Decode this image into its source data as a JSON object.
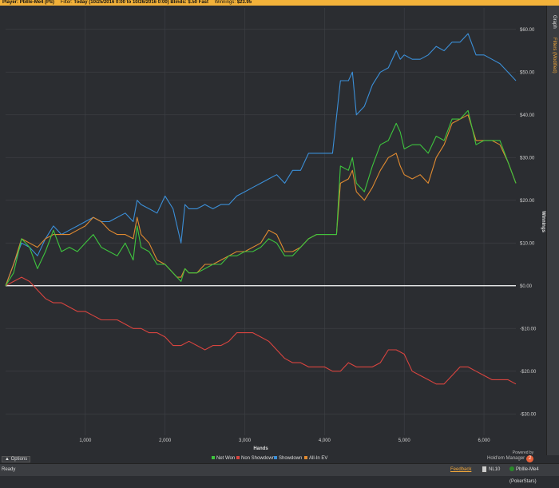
{
  "window": {
    "player_label": "Player:",
    "player_value": "PbIlle-Me4 (PS)",
    "filter_label": "Filter:",
    "filter_value": "Today (10/25/2016 0:00 to 10/26/2016 0:00) Blinds: $.50 Fast",
    "winnings_label": "Winnings:",
    "winnings_value": "$23.95"
  },
  "side_tabs": {
    "graph": "Graph",
    "filters": "Filters (Modified)"
  },
  "footer": {
    "options_label": "Options",
    "status": "Ready",
    "feedback": "Feedback",
    "limit": "NL10",
    "player": "PbIlle-Me4 (PokerStars)",
    "brand_small": "Powered by",
    "brand": "Hold'em Manager",
    "brand_badge": "2"
  },
  "colors": {
    "net_won": "#3ec43e",
    "non_showdown": "#d9443f",
    "showdown": "#3b8fd8",
    "allin_ev": "#e08a30",
    "zero_line": "#ffffff",
    "background": "#2b2d31",
    "grid": "#3c3f44"
  },
  "chart_data": {
    "type": "line",
    "title": "",
    "xlabel": "Hands",
    "ylabel": "Winnings",
    "xlim": [
      0,
      6400
    ],
    "ylim": [
      -35,
      65
    ],
    "x_ticks": [
      1000,
      2000,
      3000,
      4000,
      5000,
      6000
    ],
    "x_tick_labels": [
      "1,000",
      "2,000",
      "3,000",
      "4,000",
      "5,000",
      "6,000"
    ],
    "y_ticks": [
      -30,
      -20,
      -10,
      0,
      10,
      20,
      30,
      40,
      50,
      60
    ],
    "y_tick_labels": [
      "-$30.00",
      "-$20.00",
      "-$10.00",
      "$0.00",
      "$10.00",
      "$20.00",
      "$30.00",
      "$40.00",
      "$50.00",
      "$60.00"
    ],
    "grid": true,
    "legend_position": "bottom",
    "series": [
      {
        "name": "Net Won",
        "color": "#3ec43e",
        "points": [
          [
            0,
            0
          ],
          [
            100,
            3
          ],
          [
            200,
            11
          ],
          [
            300,
            9
          ],
          [
            400,
            4
          ],
          [
            500,
            8
          ],
          [
            600,
            13
          ],
          [
            700,
            8
          ],
          [
            800,
            9
          ],
          [
            900,
            8
          ],
          [
            1000,
            10
          ],
          [
            1100,
            12
          ],
          [
            1200,
            9
          ],
          [
            1300,
            8
          ],
          [
            1400,
            7
          ],
          [
            1500,
            10
          ],
          [
            1600,
            6
          ],
          [
            1650,
            14
          ],
          [
            1700,
            9
          ],
          [
            1800,
            8
          ],
          [
            1900,
            5
          ],
          [
            2000,
            5
          ],
          [
            2100,
            3
          ],
          [
            2150,
            2
          ],
          [
            2200,
            1
          ],
          [
            2250,
            4
          ],
          [
            2300,
            3
          ],
          [
            2400,
            3
          ],
          [
            2500,
            4
          ],
          [
            2600,
            5
          ],
          [
            2700,
            5
          ],
          [
            2800,
            7
          ],
          [
            2900,
            7
          ],
          [
            3000,
            8
          ],
          [
            3100,
            8
          ],
          [
            3200,
            9
          ],
          [
            3300,
            11
          ],
          [
            3400,
            10
          ],
          [
            3500,
            7
          ],
          [
            3600,
            7
          ],
          [
            3700,
            9
          ],
          [
            3800,
            11
          ],
          [
            3900,
            12
          ],
          [
            4000,
            12
          ],
          [
            4100,
            12
          ],
          [
            4150,
            12
          ],
          [
            4200,
            28
          ],
          [
            4300,
            27
          ],
          [
            4350,
            30
          ],
          [
            4400,
            24
          ],
          [
            4500,
            22
          ],
          [
            4600,
            28
          ],
          [
            4700,
            33
          ],
          [
            4800,
            34
          ],
          [
            4900,
            38
          ],
          [
            4950,
            36
          ],
          [
            5000,
            32
          ],
          [
            5100,
            33
          ],
          [
            5200,
            33
          ],
          [
            5300,
            31
          ],
          [
            5400,
            35
          ],
          [
            5500,
            34
          ],
          [
            5600,
            39
          ],
          [
            5700,
            39
          ],
          [
            5800,
            41
          ],
          [
            5900,
            33
          ],
          [
            6000,
            34
          ],
          [
            6100,
            34
          ],
          [
            6200,
            34
          ],
          [
            6300,
            29
          ],
          [
            6400,
            24
          ]
        ]
      },
      {
        "name": "Non Showdown",
        "color": "#d9443f",
        "points": [
          [
            0,
            0
          ],
          [
            100,
            1
          ],
          [
            200,
            2
          ],
          [
            300,
            1
          ],
          [
            400,
            -1
          ],
          [
            500,
            -3
          ],
          [
            600,
            -4
          ],
          [
            700,
            -4
          ],
          [
            800,
            -5
          ],
          [
            900,
            -6
          ],
          [
            1000,
            -6
          ],
          [
            1100,
            -7
          ],
          [
            1200,
            -8
          ],
          [
            1300,
            -8
          ],
          [
            1400,
            -8
          ],
          [
            1500,
            -9
          ],
          [
            1600,
            -10
          ],
          [
            1700,
            -10
          ],
          [
            1800,
            -11
          ],
          [
            1900,
            -11
          ],
          [
            2000,
            -12
          ],
          [
            2100,
            -14
          ],
          [
            2200,
            -14
          ],
          [
            2300,
            -13
          ],
          [
            2400,
            -14
          ],
          [
            2500,
            -15
          ],
          [
            2600,
            -14
          ],
          [
            2700,
            -14
          ],
          [
            2800,
            -13
          ],
          [
            2900,
            -11
          ],
          [
            3000,
            -11
          ],
          [
            3100,
            -11
          ],
          [
            3200,
            -12
          ],
          [
            3300,
            -13
          ],
          [
            3400,
            -15
          ],
          [
            3500,
            -17
          ],
          [
            3600,
            -18
          ],
          [
            3700,
            -18
          ],
          [
            3800,
            -19
          ],
          [
            3900,
            -19
          ],
          [
            4000,
            -19
          ],
          [
            4100,
            -20
          ],
          [
            4200,
            -20
          ],
          [
            4300,
            -18
          ],
          [
            4400,
            -19
          ],
          [
            4500,
            -19
          ],
          [
            4600,
            -19
          ],
          [
            4700,
            -18
          ],
          [
            4800,
            -15
          ],
          [
            4900,
            -15
          ],
          [
            5000,
            -16
          ],
          [
            5100,
            -20
          ],
          [
            5200,
            -21
          ],
          [
            5300,
            -22
          ],
          [
            5400,
            -23
          ],
          [
            5500,
            -23
          ],
          [
            5600,
            -21
          ],
          [
            5700,
            -19
          ],
          [
            5800,
            -19
          ],
          [
            5900,
            -20
          ],
          [
            6000,
            -21
          ],
          [
            6100,
            -22
          ],
          [
            6200,
            -22
          ],
          [
            6300,
            -22
          ],
          [
            6400,
            -23
          ]
        ]
      },
      {
        "name": "Showdown",
        "color": "#3b8fd8",
        "points": [
          [
            0,
            0
          ],
          [
            100,
            5
          ],
          [
            200,
            10
          ],
          [
            300,
            9
          ],
          [
            400,
            7
          ],
          [
            500,
            11
          ],
          [
            600,
            14
          ],
          [
            700,
            12
          ],
          [
            800,
            13
          ],
          [
            900,
            14
          ],
          [
            1000,
            15
          ],
          [
            1100,
            16
          ],
          [
            1200,
            15
          ],
          [
            1300,
            15
          ],
          [
            1400,
            16
          ],
          [
            1500,
            17
          ],
          [
            1600,
            15
          ],
          [
            1650,
            20
          ],
          [
            1700,
            19
          ],
          [
            1800,
            18
          ],
          [
            1900,
            17
          ],
          [
            2000,
            21
          ],
          [
            2100,
            18
          ],
          [
            2200,
            10
          ],
          [
            2250,
            19
          ],
          [
            2300,
            18
          ],
          [
            2400,
            18
          ],
          [
            2500,
            19
          ],
          [
            2600,
            18
          ],
          [
            2700,
            19
          ],
          [
            2800,
            19
          ],
          [
            2900,
            21
          ],
          [
            3000,
            22
          ],
          [
            3100,
            23
          ],
          [
            3200,
            24
          ],
          [
            3300,
            25
          ],
          [
            3400,
            26
          ],
          [
            3500,
            24
          ],
          [
            3600,
            27
          ],
          [
            3700,
            27
          ],
          [
            3800,
            31
          ],
          [
            3900,
            31
          ],
          [
            4000,
            31
          ],
          [
            4100,
            31
          ],
          [
            4200,
            48
          ],
          [
            4300,
            48
          ],
          [
            4350,
            50
          ],
          [
            4400,
            40
          ],
          [
            4500,
            42
          ],
          [
            4600,
            47
          ],
          [
            4700,
            50
          ],
          [
            4800,
            51
          ],
          [
            4900,
            55
          ],
          [
            4950,
            53
          ],
          [
            5000,
            54
          ],
          [
            5100,
            53
          ],
          [
            5200,
            53
          ],
          [
            5300,
            54
          ],
          [
            5400,
            56
          ],
          [
            5500,
            55
          ],
          [
            5600,
            57
          ],
          [
            5700,
            57
          ],
          [
            5800,
            59
          ],
          [
            5900,
            54
          ],
          [
            6000,
            54
          ],
          [
            6100,
            53
          ],
          [
            6200,
            52
          ],
          [
            6300,
            50
          ],
          [
            6400,
            48
          ]
        ]
      },
      {
        "name": "All-In EV",
        "color": "#e08a30",
        "points": [
          [
            0,
            0
          ],
          [
            100,
            5
          ],
          [
            200,
            11
          ],
          [
            300,
            10
          ],
          [
            400,
            9
          ],
          [
            500,
            11
          ],
          [
            600,
            12
          ],
          [
            700,
            12
          ],
          [
            800,
            12
          ],
          [
            900,
            13
          ],
          [
            1000,
            14
          ],
          [
            1100,
            16
          ],
          [
            1200,
            15
          ],
          [
            1300,
            13
          ],
          [
            1400,
            12
          ],
          [
            1500,
            12
          ],
          [
            1600,
            11
          ],
          [
            1650,
            16
          ],
          [
            1700,
            12
          ],
          [
            1800,
            10
          ],
          [
            1900,
            6
          ],
          [
            2000,
            5
          ],
          [
            2100,
            3
          ],
          [
            2150,
            2
          ],
          [
            2200,
            2
          ],
          [
            2250,
            4
          ],
          [
            2300,
            3
          ],
          [
            2400,
            3
          ],
          [
            2500,
            5
          ],
          [
            2600,
            5
          ],
          [
            2700,
            6
          ],
          [
            2800,
            7
          ],
          [
            2900,
            8
          ],
          [
            3000,
            8
          ],
          [
            3100,
            9
          ],
          [
            3200,
            10
          ],
          [
            3300,
            13
          ],
          [
            3400,
            12
          ],
          [
            3500,
            8
          ],
          [
            3600,
            8
          ],
          [
            3700,
            9
          ],
          [
            3800,
            11
          ],
          [
            3900,
            12
          ],
          [
            4000,
            12
          ],
          [
            4100,
            12
          ],
          [
            4150,
            12
          ],
          [
            4200,
            24
          ],
          [
            4300,
            25
          ],
          [
            4350,
            27
          ],
          [
            4400,
            22
          ],
          [
            4500,
            20
          ],
          [
            4600,
            23
          ],
          [
            4700,
            27
          ],
          [
            4800,
            30
          ],
          [
            4900,
            31
          ],
          [
            4950,
            28
          ],
          [
            5000,
            26
          ],
          [
            5100,
            25
          ],
          [
            5200,
            26
          ],
          [
            5300,
            24
          ],
          [
            5400,
            30
          ],
          [
            5500,
            33
          ],
          [
            5600,
            38
          ],
          [
            5700,
            39
          ],
          [
            5800,
            40
          ],
          [
            5900,
            34
          ],
          [
            6000,
            34
          ],
          [
            6100,
            34
          ],
          [
            6200,
            33
          ],
          [
            6300,
            29
          ],
          [
            6400,
            24
          ]
        ]
      }
    ]
  }
}
